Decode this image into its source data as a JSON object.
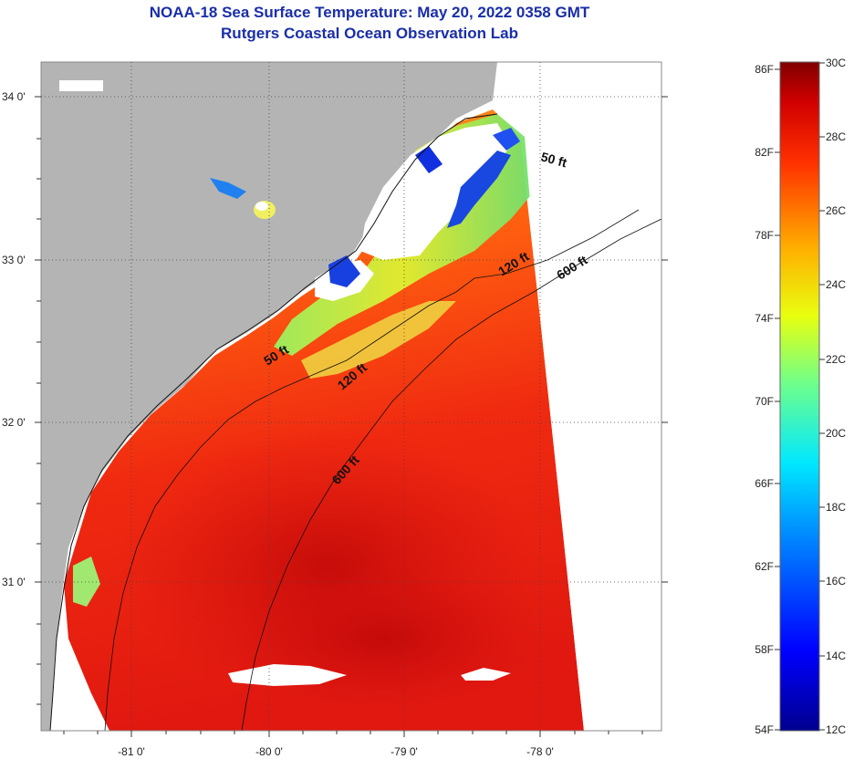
{
  "header": {
    "title": "NOAA-18 Sea Surface Temperature:  May 20, 2022 0358 GMT",
    "subtitle": "Rutgers Coastal Ocean Observation Lab"
  },
  "map": {
    "lat_labels": [
      "34 0'",
      "33 0'",
      "32 0'",
      "31 0'"
    ],
    "lon_labels": [
      "-81 0'",
      "-80 0'",
      "-79 0'",
      "-78 0'"
    ],
    "contour_labels": [
      "50 ft",
      "120 ft",
      "600 ft",
      "50 ft",
      "120 ft",
      "600 ft"
    ],
    "colors": {
      "land": "#b4b4b4",
      "no_data": "#ffffff",
      "cloud": "#ffffff"
    }
  },
  "colorbar": {
    "fahrenheit_labels": [
      "86F",
      "82F",
      "78F",
      "74F",
      "70F",
      "66F",
      "62F",
      "58F",
      "54F"
    ],
    "celsius_labels": [
      "30C",
      "28C",
      "26C",
      "24C",
      "22C",
      "20C",
      "18C",
      "16C",
      "14C",
      "12C"
    ],
    "min_c": 12,
    "max_c": 30,
    "min_f": 54,
    "max_f": 86
  }
}
